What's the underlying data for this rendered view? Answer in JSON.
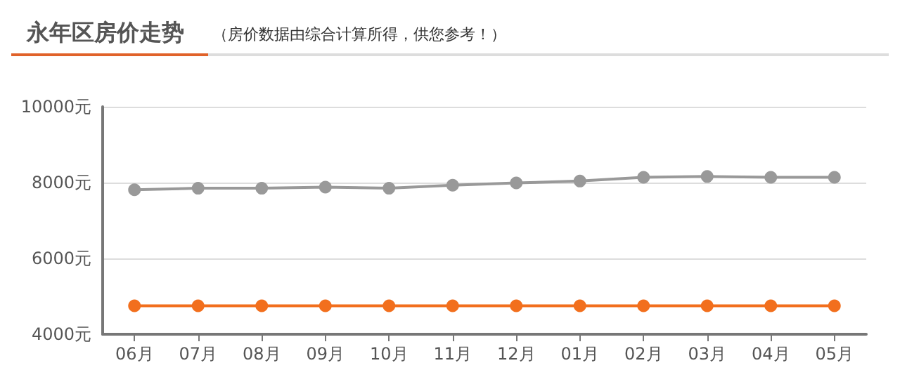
{
  "chart_data": {
    "type": "line",
    "title": "永年区房价走势",
    "subtitle": "（房价数据由综合计算所得，供您参考！）",
    "categories": [
      "06月",
      "07月",
      "08月",
      "09月",
      "10月",
      "11月",
      "12月",
      "01月",
      "02月",
      "03月",
      "04月",
      "05月"
    ],
    "series": [
      {
        "color": "#999999",
        "values": [
          7810,
          7850,
          7850,
          7880,
          7850,
          7930,
          7990,
          8040,
          8140,
          8160,
          8140,
          8140
        ]
      },
      {
        "color": "#f26f1d",
        "values": [
          4750,
          4750,
          4750,
          4750,
          4750,
          4750,
          4750,
          4750,
          4750,
          4750,
          4750,
          4750
        ]
      }
    ],
    "ylim": [
      4000,
      10000
    ],
    "yticks": [
      {
        "value": 4000,
        "label": "4000元"
      },
      {
        "value": 6000,
        "label": "6000元"
      },
      {
        "value": 8000,
        "label": "8000元"
      },
      {
        "value": 10000,
        "label": "10000元"
      }
    ],
    "grid": "y",
    "marker": "circle",
    "line_style": "solid"
  }
}
